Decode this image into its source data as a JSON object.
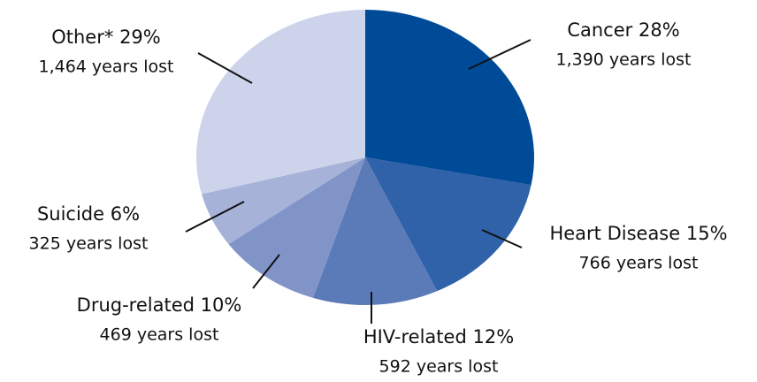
{
  "chart_data": {
    "type": "pie",
    "categories": [
      "Cancer",
      "Heart Disease",
      "HIV-related",
      "Drug-related",
      "Suicide",
      "Other*"
    ],
    "values": [
      28,
      15,
      12,
      10,
      6,
      29
    ],
    "value_labels": [
      "28%",
      "15%",
      "12%",
      "10%",
      "6%",
      "29%"
    ],
    "years_lost": [
      1390,
      766,
      592,
      469,
      325,
      1464
    ],
    "years_lost_labels": [
      "1,390 years lost",
      "766 years lost",
      "592 years lost",
      "469 years lost",
      "325 years lost",
      "1,464 years lost"
    ],
    "colors": [
      "#004b97",
      "#2f62a8",
      "#5b7ab8",
      "#8094c8",
      "#a6b2d8",
      "#cdd3ea"
    ]
  }
}
